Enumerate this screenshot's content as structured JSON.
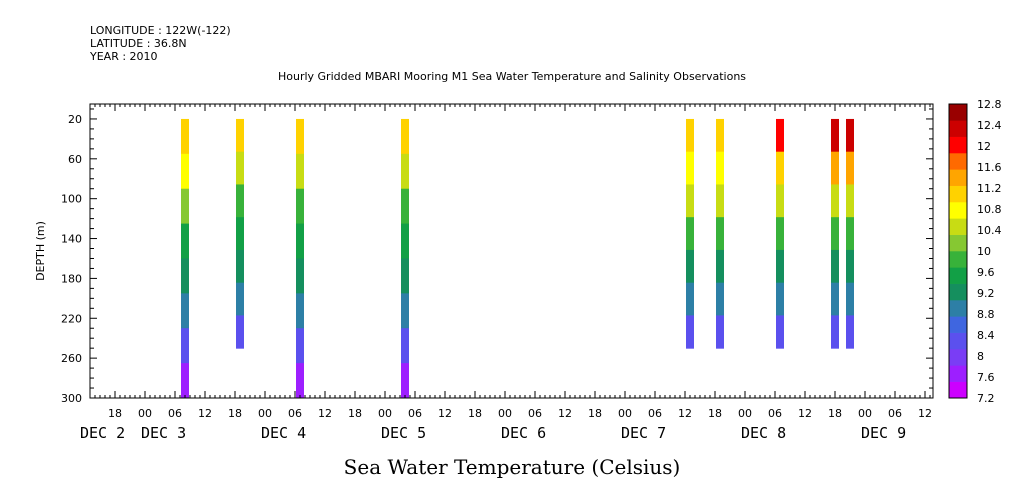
{
  "header": {
    "longitude": "LONGITUDE : 122W(-122)",
    "latitude": "LATITUDE : 36.8N",
    "year": "YEAR : 2010"
  },
  "chart_data": {
    "type": "heatmap",
    "title": "Hourly Gridded MBARI Mooring M1 Sea Water Temperature and Salinity Observations",
    "xlabel": "Sea Water Temperature (Celsius)",
    "ylabel": "DEPTH (m)",
    "x_hour_ticks": [
      "18",
      "00",
      "06",
      "12",
      "18",
      "00",
      "06",
      "12",
      "18",
      "00",
      "06",
      "12",
      "18",
      "00",
      "06",
      "12",
      "18",
      "00",
      "06",
      "12",
      "18",
      "00",
      "06",
      "12",
      "18",
      "00",
      "06",
      "12"
    ],
    "x_day_labels": [
      "DEC  2",
      "DEC  3",
      "DEC  4",
      "DEC  5",
      "DEC  6",
      "DEC  7",
      "DEC  8",
      "DEC  9"
    ],
    "y_ticks": [
      20,
      60,
      100,
      140,
      180,
      220,
      260,
      300
    ],
    "ylim": [
      300,
      5
    ],
    "colorbar_levels": [
      7.2,
      7.6,
      8,
      8.4,
      8.8,
      9.2,
      9.6,
      10,
      10.4,
      10.8,
      11.2,
      11.6,
      12,
      12.4,
      12.8
    ],
    "colorbar_labels": [
      "7.2",
      "7.6",
      "8",
      "8.4",
      "8.8",
      "9.2",
      "9.6",
      "10",
      "10.4",
      "10.8",
      "11.2",
      "11.6",
      "12",
      "12.4",
      "12.8"
    ],
    "colorbar_colors": [
      "#cc00ff",
      "#9d1fff",
      "#7a3df5",
      "#5b50ee",
      "#3f66e0",
      "#2d7fa6",
      "#158f5e",
      "#12a046",
      "#38b23a",
      "#86c832",
      "#c8dc14",
      "#ffff00",
      "#ffd200",
      "#ffa500",
      "#ff6a00",
      "#ff0000",
      "#cc0000",
      "#990000"
    ],
    "series": [
      {
        "time": "Dec 3 08:00",
        "depth_range": [
          20,
          300
        ],
        "values": [
          11.2,
          10.8,
          10.2,
          9.6,
          9.2,
          8.8,
          8.4,
          7.8
        ]
      },
      {
        "time": "Dec 3 19:00",
        "depth_range": [
          20,
          250
        ],
        "values": [
          11.2,
          10.6,
          10.0,
          9.6,
          9.2,
          8.8,
          8.4
        ]
      },
      {
        "time": "Dec 4 07:00",
        "depth_range": [
          20,
          300
        ],
        "values": [
          11.2,
          10.4,
          10.0,
          9.6,
          9.2,
          8.8,
          8.4,
          7.6
        ]
      },
      {
        "time": "Dec 5 04:00",
        "depth_range": [
          20,
          300
        ],
        "values": [
          11.2,
          10.6,
          10.0,
          9.6,
          9.2,
          8.8,
          8.4,
          7.8
        ]
      },
      {
        "time": "Dec 7 13:00",
        "depth_range": [
          20,
          250
        ],
        "values": [
          11.2,
          10.8,
          10.4,
          10.0,
          9.2,
          8.8,
          8.4
        ]
      },
      {
        "time": "Dec 7 19:00",
        "depth_range": [
          20,
          250
        ],
        "values": [
          11.2,
          10.8,
          10.4,
          10.0,
          9.2,
          8.8,
          8.4
        ]
      },
      {
        "time": "Dec 8 07:00",
        "depth_range": [
          20,
          250
        ],
        "values": [
          12.0,
          11.2,
          10.6,
          10.0,
          9.2,
          8.8,
          8.4
        ]
      },
      {
        "time": "Dec 8 18:00",
        "depth_range": [
          20,
          250
        ],
        "values": [
          12.2,
          11.4,
          10.6,
          10.0,
          9.2,
          8.8,
          8.4
        ]
      },
      {
        "time": "Dec 8 21:00",
        "depth_range": [
          20,
          250
        ],
        "values": [
          12.2,
          11.4,
          10.6,
          10.0,
          9.2,
          8.8,
          8.4
        ]
      }
    ]
  }
}
